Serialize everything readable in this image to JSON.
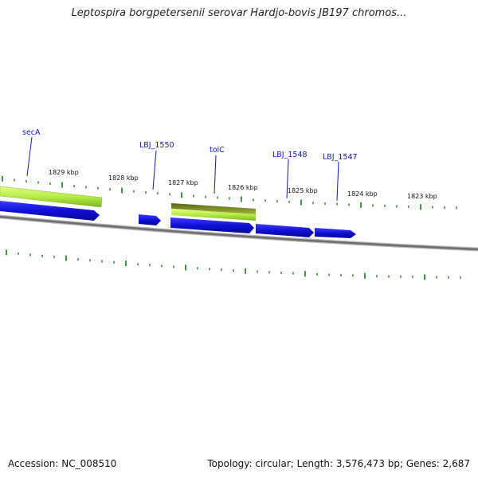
{
  "title": "Leptospira borgpetersenii serovar Hardjo-bovis JB197 chromos...",
  "footer": {
    "accession": "Accession: NC_008510",
    "summary": "Topology: circular; Length: 3,576,473 bp; Genes: 2,687"
  },
  "ruler_labels": [
    "1829 kbp",
    "1828 kbp",
    "1827 kbp",
    "1826 kbp",
    "1825 kbp",
    "1824 kbp",
    "1823 kbp"
  ],
  "gene_labels": [
    "secA",
    "LBJ_1550",
    "tolC",
    "LBJ_1548",
    "LBJ_1547"
  ],
  "colors": {
    "gene_arrow": "#1010d8",
    "feature_light": "#c6f25a",
    "feature_dark": "#6f7d1e",
    "tick": "#2c8a2c",
    "backbone": "#7a7a7a",
    "label": "#1414b4"
  }
}
